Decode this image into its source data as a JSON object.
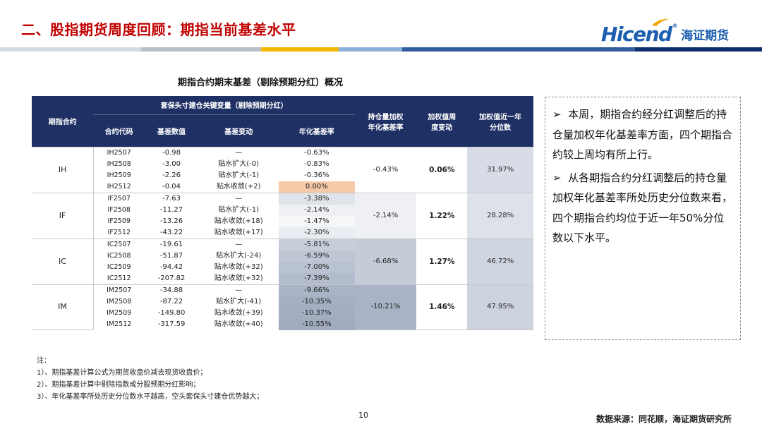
{
  "header": {
    "title": "二、股指期货周度回顾：期指当前基差水平",
    "logo_text": "Hicend",
    "logo_reg": "®",
    "logo_cn": "海证期货",
    "stripe_colors": [
      "#d4dbe5",
      "#b7bfcb",
      "#f3b700",
      "#8fb0d9",
      "#2f5d9e",
      "#0d2f6b"
    ]
  },
  "table": {
    "title": "期指合约期末基差（剔除预期分红）概况",
    "header_group": "套保头寸建仓关键变量（剔除预期分红）",
    "col_index": "期指合约",
    "col_code": "合约代码",
    "col_basis": "基差数值",
    "col_change": "基差变动",
    "col_annual": "年化基差率",
    "col_weighted_l1": "持仓量加权",
    "col_weighted_l2": "年化基差率",
    "col_wchange_l1": "加权值周",
    "col_wchange_l2": "度变动",
    "col_pct_l1": "加权值近一年",
    "col_pct_l2": "分位数",
    "groups": [
      {
        "index": "IH",
        "weighted": "-0.43%",
        "weekly_change": "0.06%",
        "percentile": "31.97%",
        "rows": [
          {
            "code": "IH2507",
            "basis": "-0.98",
            "change": "—",
            "annual": "-0.63%"
          },
          {
            "code": "IH2508",
            "basis": "-3.00",
            "change": "贴水扩大(-0)",
            "annual": "-0.83%"
          },
          {
            "code": "IH2509",
            "basis": "-2.26",
            "change": "贴水扩大(-1)",
            "annual": "-0.36%"
          },
          {
            "code": "IH2512",
            "basis": "-0.04",
            "change": "贴水收敛(+2)",
            "annual": "0.00%"
          }
        ]
      },
      {
        "index": "IF",
        "weighted": "-2.14%",
        "weekly_change": "1.22%",
        "percentile": "28.28%",
        "rows": [
          {
            "code": "IF2507",
            "basis": "-7.63",
            "change": "—",
            "annual": "-3.38%"
          },
          {
            "code": "IF2508",
            "basis": "-11.27",
            "change": "贴水扩大(-1)",
            "annual": "-2.14%"
          },
          {
            "code": "IF2509",
            "basis": "-13.26",
            "change": "贴水收敛(+18)",
            "annual": "-1.47%"
          },
          {
            "code": "IF2512",
            "basis": "-43.22",
            "change": "贴水收敛(+17)",
            "annual": "-2.30%"
          }
        ]
      },
      {
        "index": "IC",
        "weighted": "-6.68%",
        "weekly_change": "1.27%",
        "percentile": "46.72%",
        "rows": [
          {
            "code": "IC2507",
            "basis": "-19.61",
            "change": "—",
            "annual": "-5.81%"
          },
          {
            "code": "IC2508",
            "basis": "-51.87",
            "change": "贴水扩大(-24)",
            "annual": "-6.59%"
          },
          {
            "code": "IC2509",
            "basis": "-94.42",
            "change": "贴水收敛(+32)",
            "annual": "-7.00%"
          },
          {
            "code": "IC2512",
            "basis": "-207.82",
            "change": "贴水收敛(+32)",
            "annual": "-7.39%"
          }
        ]
      },
      {
        "index": "IM",
        "weighted": "-10.21%",
        "weekly_change": "1.46%",
        "percentile": "47.95%",
        "rows": [
          {
            "code": "IM2507",
            "basis": "-34.88",
            "change": "—",
            "annual": "-9.66%"
          },
          {
            "code": "IM2508",
            "basis": "-87.22",
            "change": "贴水扩大(-41)",
            "annual": "-10.35%"
          },
          {
            "code": "IM2509",
            "basis": "-149.80",
            "change": "贴水收敛(+39)",
            "annual": "-10.37%"
          },
          {
            "code": "IM2512",
            "basis": "-317.59",
            "change": "贴水收敛(+40)",
            "annual": "-10.55%"
          }
        ]
      }
    ]
  },
  "commentary": {
    "bullet": "➢",
    "p1": "本周，期指合约经分红调整后的持仓量加权年化基差率方面，四个期指合约较上周均有所上行。",
    "p2": "从各期指合约分红调整后的持仓量加权年化基差率所处历史分位数来看，四个期指合约均位于近一年50%分位数以下水平。"
  },
  "notes": {
    "heading": "注：",
    "items": [
      "1）、期指基差计算公式为期货收盘价减去现货收盘价；",
      "2）、期指基差计算中剔除指数成分股预期分红影响；",
      "3）、年化基差率所处历史分位数水平越高，空头套保头寸建仓优势越大；"
    ]
  },
  "footer": {
    "page_number": "10",
    "source": "数据来源：同花顺，海证期货研究所"
  }
}
